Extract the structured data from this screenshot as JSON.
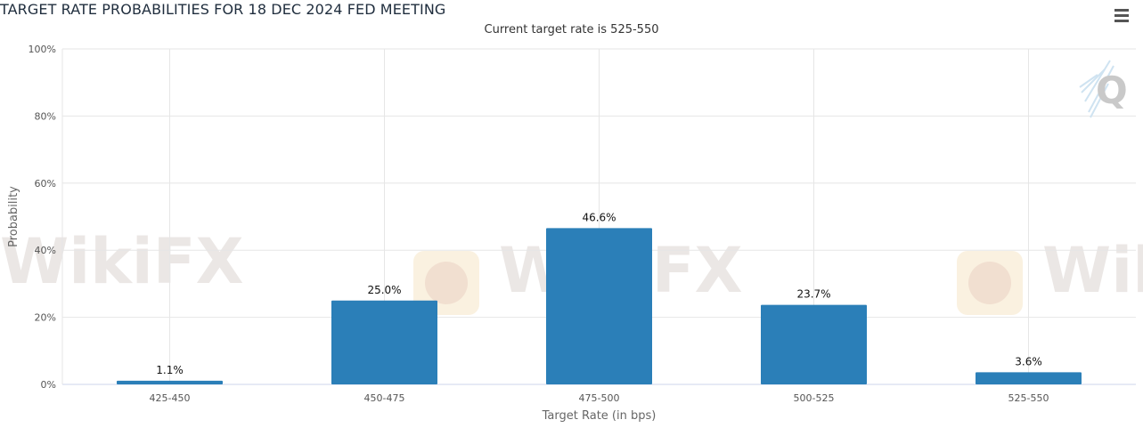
{
  "chart_data": {
    "type": "bar",
    "title": "TARGET RATE PROBABILITIES FOR 18 DEC 2024 FED MEETING",
    "subtitle": "Current target rate is 525-550",
    "xlabel": "Target Rate (in bps)",
    "ylabel": "Probability",
    "categories": [
      "425-450",
      "450-475",
      "475-500",
      "500-525",
      "525-550"
    ],
    "values": [
      1.1,
      25.0,
      46.6,
      23.7,
      3.6
    ],
    "data_labels": [
      "1.1%",
      "25.0%",
      "46.6%",
      "23.7%",
      "3.6%"
    ],
    "ylim": [
      0,
      100
    ],
    "yticks": [
      0,
      20,
      40,
      60,
      80,
      100
    ],
    "ytick_labels": [
      "0%",
      "20%",
      "40%",
      "60%",
      "80%",
      "100%"
    ],
    "grid": true,
    "bar_color": "#2b7fb8"
  },
  "watermark": {
    "text": "WikiFX",
    "partial_text": "Wiki"
  },
  "icons": {
    "menu": "hamburger-icon",
    "logo": "quikstrike-logo-icon"
  }
}
